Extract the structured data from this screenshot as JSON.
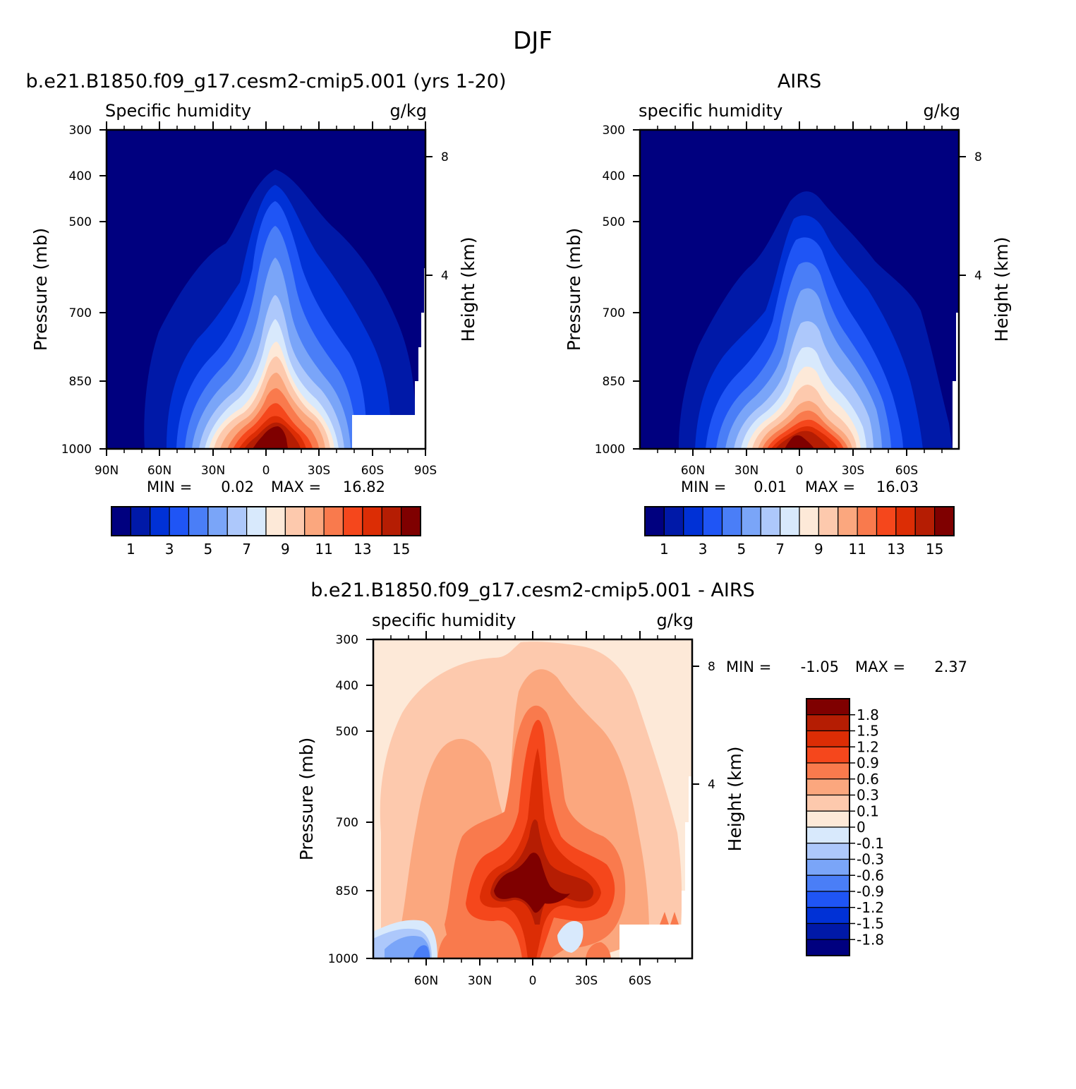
{
  "figure": {
    "title": "DJF"
  },
  "contour_colors": [
    "#00007f",
    "#0019a8",
    "#0031d6",
    "#1f55f5",
    "#4a7ef7",
    "#7aa5f8",
    "#adc8fb",
    "#d8e9fc",
    "#fde9d8",
    "#fdc9ad",
    "#fba77e",
    "#f97a4d",
    "#f5471c",
    "#dc2d05",
    "#b51d03",
    "#7f0000"
  ],
  "chart_data": [
    {
      "type": "contour",
      "title": "b.e21.B1850.f09_g17.cesm2-cmip5.001 (yrs 1-20)",
      "variable": "Specific humidity",
      "units": "g/kg",
      "ylabel": "Pressure (mb)",
      "ylabel_right": "Height (km)",
      "y_ticks": [
        "300",
        "400",
        "500",
        "700",
        "850",
        "1000"
      ],
      "y_right_ticks": [
        "8",
        "4"
      ],
      "x_ticks": [
        "90N",
        "60N",
        "30N",
        "0",
        "30S",
        "60S",
        "90S"
      ],
      "ylim": [
        1000,
        300
      ],
      "xlim": [
        "90N",
        "90S"
      ],
      "stats": {
        "min_label": "MIN =",
        "min": "0.02",
        "max_label": "MAX =",
        "max": "16.82"
      },
      "colorbar": {
        "orientation": "horizontal",
        "labels": [
          "1",
          "3",
          "5",
          "7",
          "9",
          "11",
          "13",
          "15"
        ],
        "levels": [
          1,
          2,
          3,
          4,
          5,
          6,
          7,
          8,
          9,
          10,
          11,
          12,
          13,
          14,
          15
        ]
      }
    },
    {
      "type": "contour",
      "title": "AIRS",
      "variable": "specific humidity",
      "units": "g/kg",
      "ylabel": "Pressure (mb)",
      "ylabel_right": "Height (km)",
      "y_ticks": [
        "300",
        "400",
        "500",
        "700",
        "850",
        "1000"
      ],
      "y_right_ticks": [
        "8",
        "4"
      ],
      "x_ticks": [
        "60N",
        "30N",
        "0",
        "30S",
        "60S"
      ],
      "ylim": [
        1000,
        300
      ],
      "stats": {
        "min_label": "MIN =",
        "min": "0.01",
        "max_label": "MAX =",
        "max": "16.03"
      },
      "colorbar": {
        "orientation": "horizontal",
        "labels": [
          "1",
          "3",
          "5",
          "7",
          "9",
          "11",
          "13",
          "15"
        ],
        "levels": [
          1,
          2,
          3,
          4,
          5,
          6,
          7,
          8,
          9,
          10,
          11,
          12,
          13,
          14,
          15
        ]
      }
    },
    {
      "type": "contour",
      "title": "b.e21.B1850.f09_g17.cesm2-cmip5.001 - AIRS",
      "variable": "specific humidity",
      "units": "g/kg",
      "ylabel": "Pressure (mb)",
      "ylabel_right": "Height (km)",
      "y_ticks": [
        "300",
        "400",
        "500",
        "700",
        "850",
        "1000"
      ],
      "y_right_ticks": [
        "8",
        "4"
      ],
      "x_ticks": [
        "60N",
        "30N",
        "0",
        "30S",
        "60S"
      ],
      "ylim": [
        1000,
        300
      ],
      "stats": {
        "min_label": "MIN =",
        "min": "-1.05",
        "max_label": "MAX =",
        "max": "2.37"
      },
      "colorbar": {
        "orientation": "vertical",
        "labels": [
          "1.8",
          "1.5",
          "1.2",
          "0.9",
          "0.6",
          "0.3",
          "0.1",
          "0",
          "-0.1",
          "-0.3",
          "-0.6",
          "-0.9",
          "-1.2",
          "-1.5",
          "-1.8"
        ]
      }
    }
  ]
}
